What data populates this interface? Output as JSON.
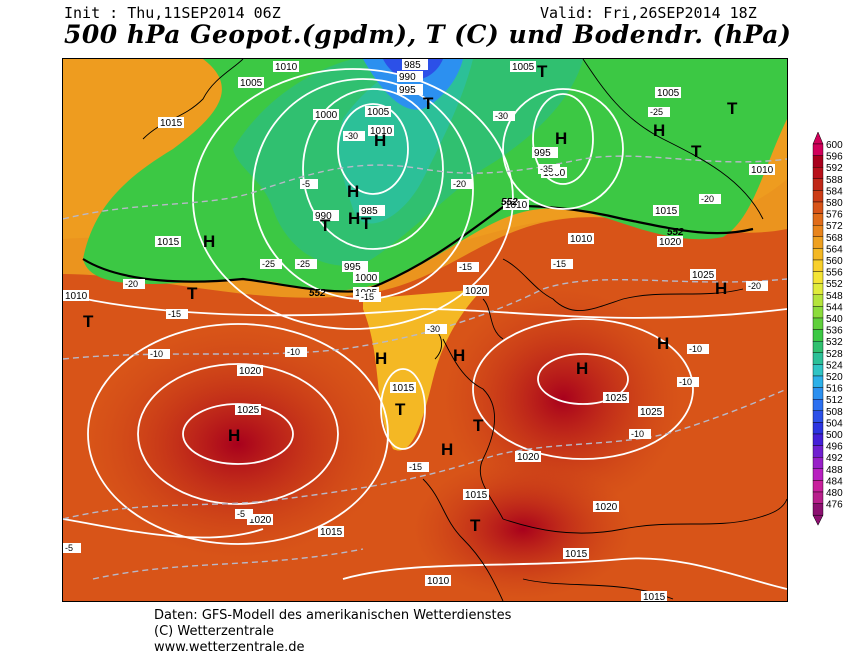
{
  "header": {
    "init": "Init : Thu,11SEP2014 06Z",
    "valid": "Valid: Fri,26SEP2014 18Z",
    "title": "500 hPa Geopot.(gpdm), T (C) und Bodendr. (hPa)"
  },
  "legend": {
    "levels": [
      "600",
      "596",
      "592",
      "588",
      "584",
      "580",
      "576",
      "572",
      "568",
      "564",
      "560",
      "556",
      "552",
      "548",
      "544",
      "540",
      "536",
      "532",
      "528",
      "524",
      "520",
      "516",
      "512",
      "508",
      "504",
      "500",
      "496",
      "492",
      "488",
      "484",
      "480",
      "476"
    ],
    "colors": [
      "#d1005a",
      "#a8001c",
      "#b8101a",
      "#c02818",
      "#cc3c16",
      "#d85418",
      "#e06c1a",
      "#e8841c",
      "#eea020",
      "#f4b824",
      "#f8d02c",
      "#f4e434",
      "#e0ec3c",
      "#b4e43c",
      "#8cdc3c",
      "#60d03c",
      "#3cc844",
      "#30c070",
      "#2cc098",
      "#30c4c4",
      "#2cb0e8",
      "#2c90f0",
      "#2c70f0",
      "#2c50e8",
      "#2c34e0",
      "#4420d8",
      "#7020d0",
      "#9820c8",
      "#b820c0",
      "#c8209c",
      "#b8208c",
      "#8c1070"
    ]
  },
  "map": {
    "pressure_labels": [
      "1010",
      "1005",
      "1015",
      "985",
      "990",
      "995",
      "1000",
      "1005",
      "1010",
      "1015",
      "1020",
      "1025",
      "1020",
      "1015",
      "1010",
      "1005",
      "1000",
      "995",
      "990",
      "985",
      "1010",
      "1010",
      "1015",
      "1020",
      "1025",
      "1025",
      "1020",
      "1020",
      "1015",
      "1015",
      "1010",
      "1005",
      "1000",
      "995",
      "1020",
      "1015",
      "1025",
      "1015",
      "1010",
      "1005"
    ],
    "temp_labels": [
      "-5",
      "-10",
      "-15",
      "-20",
      "-25",
      "-30",
      "-35",
      "-30",
      "-25",
      "-20",
      "-15",
      "-10",
      "-5",
      "-15",
      "-10",
      "-20",
      "-25",
      "-30",
      "-10",
      "-15",
      "-20",
      "-5",
      "-10",
      "-15"
    ],
    "contour_552": "552",
    "centers_H": [
      "H",
      "H",
      "H",
      "H",
      "H",
      "H",
      "H",
      "H",
      "H",
      "H",
      "H",
      "H",
      "H"
    ],
    "centers_T": [
      "T",
      "T",
      "T",
      "T",
      "T",
      "T",
      "T",
      "T",
      "T",
      "T",
      "T"
    ]
  },
  "credits": {
    "line1": "Daten: GFS-Modell des amerikanischen Wetterdienstes",
    "line2": "(C) Wetterzentrale",
    "line3": "www.wetterzentrale.de"
  }
}
